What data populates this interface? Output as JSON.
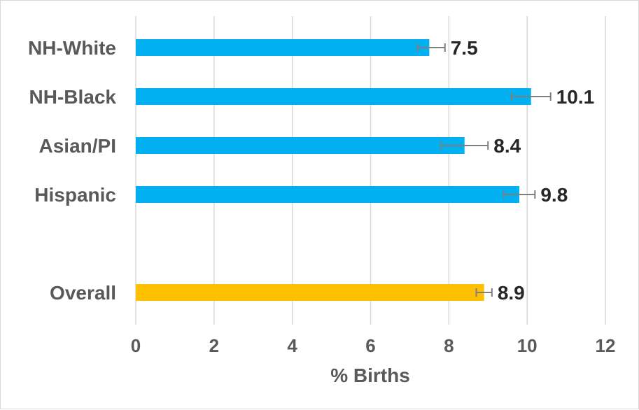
{
  "chart_data": {
    "type": "bar",
    "orientation": "horizontal",
    "xlabel": "% Births",
    "ylabel": "",
    "xlim": [
      0,
      12
    ],
    "x_ticks": [
      0,
      2,
      4,
      6,
      8,
      10,
      12
    ],
    "grid": "vertical",
    "categories": [
      "NH-White",
      "NH-Black",
      "Asian/PI",
      "Hispanic",
      "Overall"
    ],
    "values": [
      7.5,
      10.1,
      8.4,
      9.8,
      8.9
    ],
    "data_labels": [
      "7.5",
      "10.1",
      "8.4",
      "9.8",
      "8.9"
    ],
    "error_bars": [
      {
        "low": 7.2,
        "high": 7.9
      },
      {
        "low": 9.6,
        "high": 10.6
      },
      {
        "low": 7.8,
        "high": 9.0
      },
      {
        "low": 9.4,
        "high": 10.2
      },
      {
        "low": 8.7,
        "high": 9.1
      }
    ],
    "colors": [
      "#00b0f0",
      "#00b0f0",
      "#00b0f0",
      "#00b0f0",
      "#ffc000"
    ],
    "error_bar_color": "#7f7f7f",
    "gridline_color": "#d9d9d9"
  }
}
